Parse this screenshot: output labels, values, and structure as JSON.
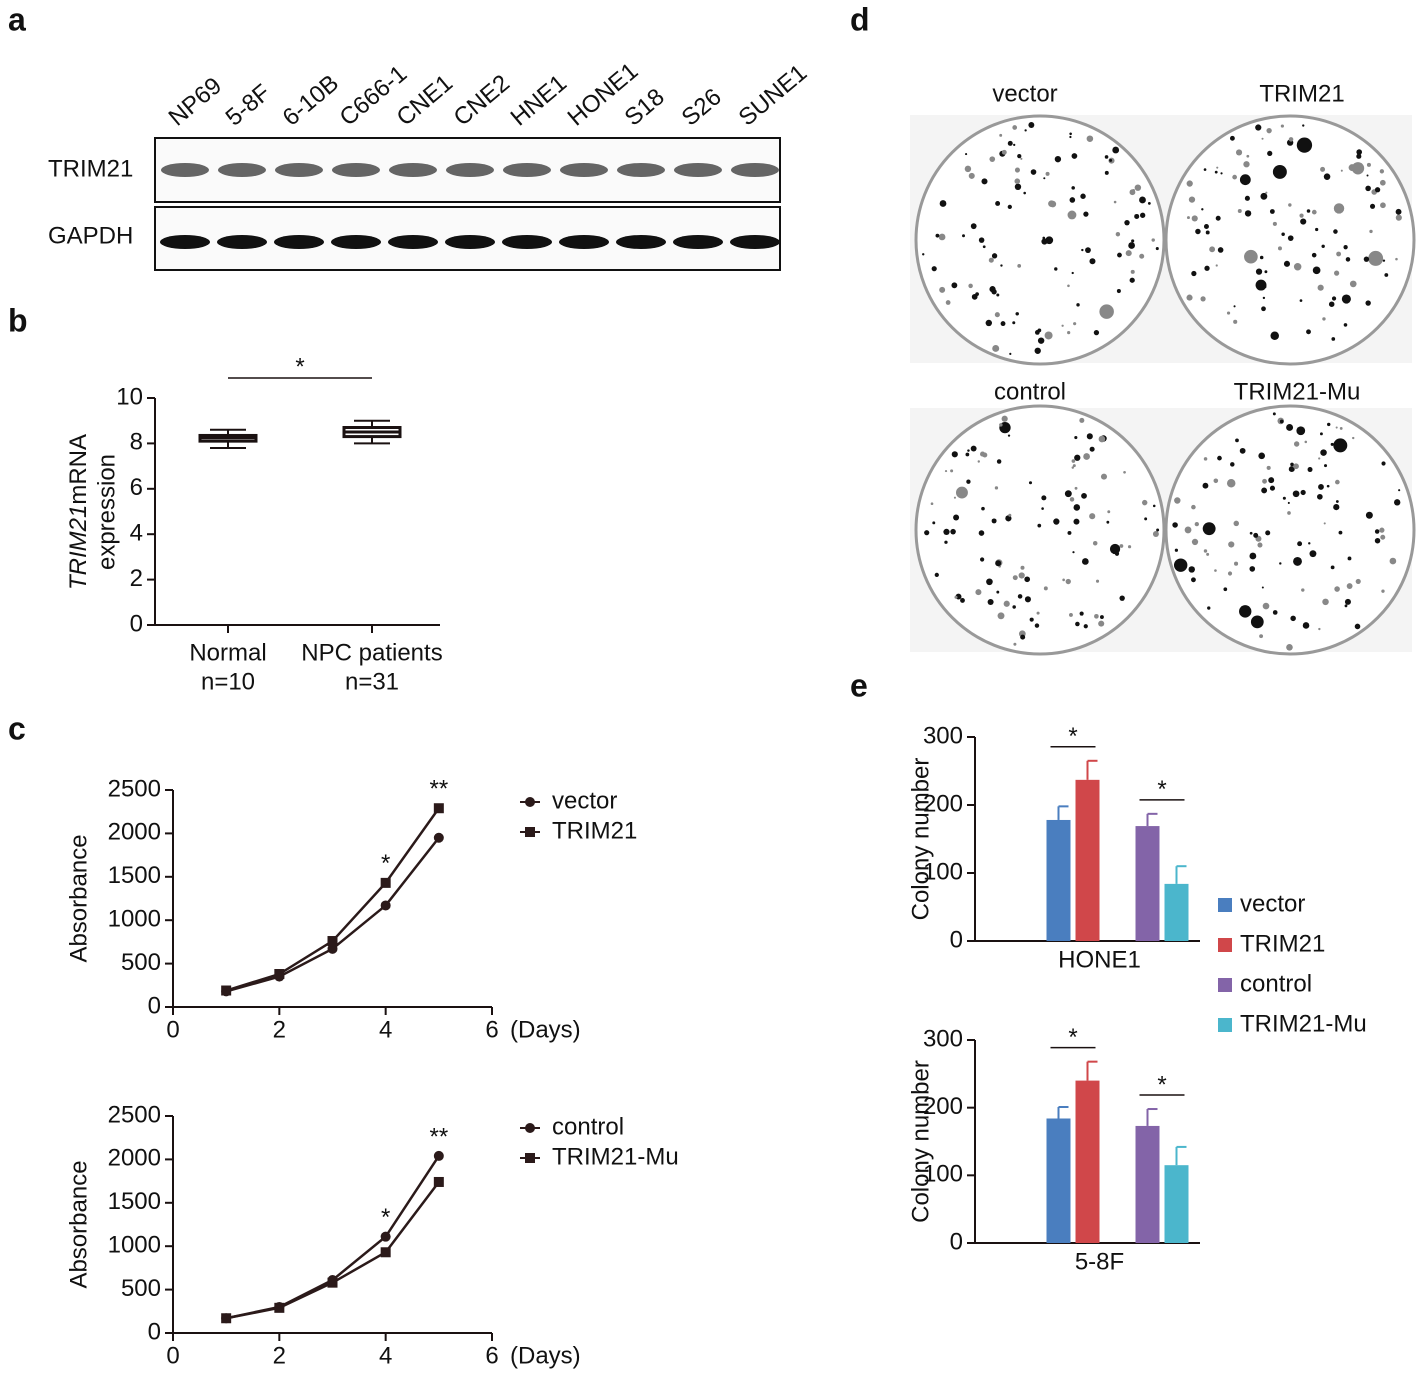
{
  "panel_labels": [
    "a",
    "b",
    "c",
    "d",
    "e"
  ],
  "blot": {
    "lanes": [
      "NP69",
      "5-8F",
      "6-10B",
      "C666-1",
      "CNE1",
      "CNE2",
      "HNE1",
      "HONE1",
      "S18",
      "S26",
      "SUNE1"
    ],
    "rows": [
      "TRIM21",
      "GAPDH"
    ]
  },
  "colony_plates": [
    "vector",
    "TRIM21",
    "control",
    "TRIM21-Mu"
  ],
  "chart_data": [
    {
      "type": "box",
      "ylabel_italic": "TRIM21",
      "ylabel": "mRNA",
      "ylabel_line2": "expression",
      "categories": [
        "Normal",
        "NPC patients"
      ],
      "sublabels": [
        "n=10",
        "n=31"
      ],
      "boxes": [
        {
          "min": 7.8,
          "q1": 8.1,
          "median": 8.25,
          "q3": 8.35,
          "max": 8.6
        },
        {
          "min": 8.0,
          "q1": 8.3,
          "median": 8.5,
          "q3": 8.7,
          "max": 9.0
        }
      ],
      "annotation": "*",
      "ylim": [
        0,
        10
      ],
      "yticks": [
        0,
        2,
        4,
        6,
        8,
        10
      ]
    },
    {
      "type": "line",
      "ylabel": "Absorbance",
      "xlabel": "(Days)",
      "x": [
        1,
        2,
        3,
        4,
        5
      ],
      "series": [
        {
          "name": "vector",
          "color": "#2b1a1a",
          "marker": "circle",
          "values": [
            180,
            350,
            670,
            1170,
            1950
          ]
        },
        {
          "name": "TRIM21",
          "color": "#2b1a1a",
          "marker": "square",
          "values": [
            190,
            380,
            760,
            1430,
            2290
          ]
        }
      ],
      "annotations": [
        {
          "x": 4,
          "text": "*"
        },
        {
          "x": 5,
          "text": "**"
        }
      ],
      "xlim": [
        0,
        6
      ],
      "xticks": [
        0,
        2,
        4,
        6
      ],
      "ylim": [
        0,
        2500
      ],
      "yticks": [
        0,
        500,
        1000,
        1500,
        2000,
        2500
      ]
    },
    {
      "type": "line",
      "ylabel": "Absorbance",
      "xlabel": "(Days)",
      "x": [
        1,
        2,
        3,
        4,
        5
      ],
      "series": [
        {
          "name": "control",
          "color": "#2b1a1a",
          "marker": "circle",
          "values": [
            170,
            300,
            610,
            1110,
            2040
          ]
        },
        {
          "name": "TRIM21-Mu",
          "color": "#2b1a1a",
          "marker": "square",
          "values": [
            170,
            290,
            580,
            930,
            1740
          ]
        }
      ],
      "annotations": [
        {
          "x": 4,
          "text": "*"
        },
        {
          "x": 5,
          "text": "**"
        }
      ],
      "xlim": [
        0,
        6
      ],
      "xticks": [
        0,
        2,
        4,
        6
      ],
      "ylim": [
        0,
        2500
      ],
      "yticks": [
        0,
        500,
        1000,
        1500,
        2000,
        2500
      ]
    },
    {
      "type": "bar",
      "ylabel": "Colony number",
      "categories": [
        "HONE1",
        "5-8F"
      ],
      "series": [
        {
          "name": "vector",
          "color": "#4a7ebf",
          "values": [
            178,
            184
          ],
          "errors": [
            20,
            17
          ]
        },
        {
          "name": "TRIM21",
          "color": "#d0474a",
          "values": [
            237,
            240
          ],
          "errors": [
            28,
            28
          ]
        },
        {
          "name": "control",
          "color": "#8364a8",
          "values": [
            169,
            173
          ],
          "errors": [
            18,
            25
          ]
        },
        {
          "name": "TRIM21-Mu",
          "color": "#4bb6cc",
          "values": [
            84,
            115
          ],
          "errors": [
            26,
            27
          ]
        }
      ],
      "annotations": [
        "*",
        "*",
        "*",
        "*"
      ],
      "ylim": [
        0,
        300
      ],
      "yticks": [
        0,
        100,
        200,
        300
      ]
    }
  ]
}
